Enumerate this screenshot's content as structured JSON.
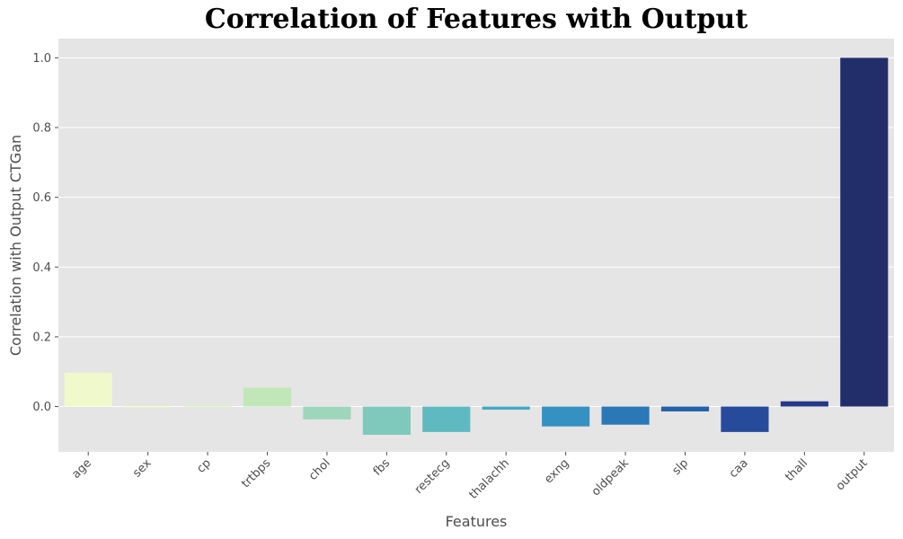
{
  "chart_data": {
    "type": "bar",
    "title": "Correlation of Features with Output",
    "xlabel": "Features",
    "ylabel": "Correlation with Output CTGan",
    "categories": [
      "age",
      "sex",
      "cp",
      "trtbps",
      "chol",
      "fbs",
      "restecg",
      "thalachh",
      "exng",
      "oldpeak",
      "slp",
      "caa",
      "thall",
      "output"
    ],
    "values": [
      0.097,
      -0.004,
      0.004,
      0.054,
      -0.037,
      -0.081,
      -0.073,
      -0.009,
      -0.057,
      -0.052,
      -0.014,
      -0.073,
      0.015,
      1.0
    ],
    "ylim": [
      -0.13,
      1.055
    ],
    "yticks": [
      0.0,
      0.2,
      0.4,
      0.6,
      0.8,
      1.0
    ],
    "ytick_labels": [
      "0.0",
      "0.2",
      "0.4",
      "0.6",
      "0.8",
      "1.0"
    ],
    "grid": true,
    "x_tick_rotation": 45,
    "colors": [
      "#f0f9cc",
      "#e4f4c0",
      "#d6efb9",
      "#c1e6b7",
      "#9ed6bb",
      "#7ec9bc",
      "#5fb9c0",
      "#43a8c3",
      "#3591c1",
      "#2a78b5",
      "#2362a9",
      "#264b9b",
      "#253787",
      "#222e6a"
    ],
    "background": "#e5e5e5",
    "grid_color": "#ffffff"
  }
}
